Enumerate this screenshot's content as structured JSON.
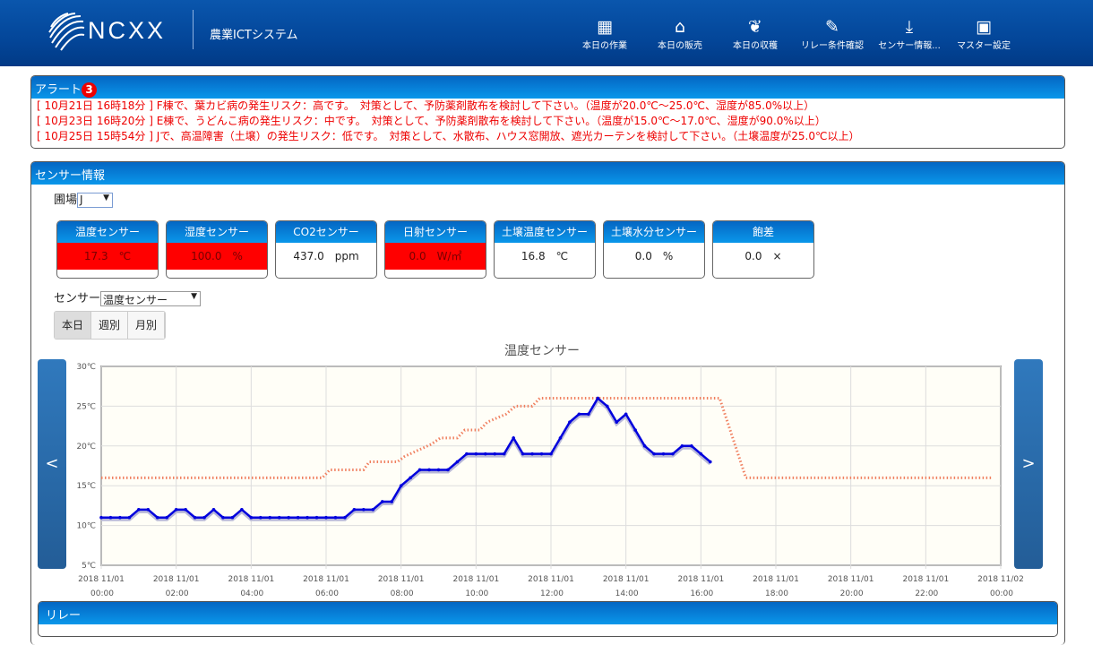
{
  "header": {
    "brand": "NCXX",
    "system": "農業ICTシステム",
    "nav": [
      {
        "label": "本日の作業",
        "icon": "calendar-icon"
      },
      {
        "label": "本日の販売",
        "icon": "store-icon"
      },
      {
        "label": "本日の収穫",
        "icon": "harvest-icon"
      },
      {
        "label": "リレー条件確認",
        "icon": "clipboard-edit-icon"
      },
      {
        "label": "センサー情報...",
        "icon": "download-icon"
      },
      {
        "label": "マスター設定",
        "icon": "id-badge-icon"
      }
    ]
  },
  "alerts": {
    "title": "アラート",
    "count": "3",
    "items": [
      "[ 10月21日 16時18分 ] F棟で、葉カビ病の発生リスク：高です。　対策として、予防薬剤散布を検討して下さい。（温度が20.0℃～25.0℃、湿度が85.0%以上）",
      "[ 10月23日 16時20分 ] E棟で、うどんこ病の発生リスク：中です。　対策として、予防薬剤散布を検討して下さい。（温度が15.0℃～17.0℃、湿度が90.0%以上）",
      "[ 10月25日 15時54分 ] Jで、高温障害（土壌）の発生リスク：低です。　対策として、水散布、ハウス窓開放、遮光カーテンを検討して下さい。（土壌温度が25.0℃以上）"
    ],
    "color": "#ee0000"
  },
  "sensor": {
    "title": "センサー情報",
    "farm_label": "圃場",
    "farm_value": "J",
    "cards": [
      {
        "name": "温度センサー",
        "value": "17.3　℃",
        "alert": true
      },
      {
        "name": "湿度センサー",
        "value": "100.0　%",
        "alert": true
      },
      {
        "name": "CO2センサー",
        "value": "437.0　ppm",
        "alert": false
      },
      {
        "name": "日射センサー",
        "value": "0.0　W/㎡",
        "alert": true
      },
      {
        "name": "土壌温度センサー",
        "value": "16.8　℃",
        "alert": false
      },
      {
        "name": "土壌水分センサー",
        "value": "0.0　%",
        "alert": false
      },
      {
        "name": "飽差",
        "value": "0.0　×",
        "alert": false
      }
    ],
    "sensor_label": "センサー",
    "sensor_value": "温度センサー",
    "ranges": [
      "本日",
      "週別",
      "月別"
    ],
    "active_range": "本日",
    "prev": "<",
    "next": ">"
  },
  "chart_data": {
    "type": "line",
    "title": "温度センサー",
    "ylim": [
      5,
      30
    ],
    "yticks": [
      "5℃",
      "10℃",
      "15℃",
      "20℃",
      "25℃",
      "30℃"
    ],
    "xlim_hours": [
      0,
      24
    ],
    "xticks": [
      [
        "2018 11/01",
        "00:00"
      ],
      [
        "2018 11/01",
        "02:00"
      ],
      [
        "2018 11/01",
        "04:00"
      ],
      [
        "2018 11/01",
        "06:00"
      ],
      [
        "2018 11/01",
        "08:00"
      ],
      [
        "2018 11/01",
        "10:00"
      ],
      [
        "2018 11/01",
        "12:00"
      ],
      [
        "2018 11/01",
        "14:00"
      ],
      [
        "2018 11/01",
        "16:00"
      ],
      [
        "2018 11/01",
        "18:00"
      ],
      [
        "2018 11/01",
        "20:00"
      ],
      [
        "2018 11/01",
        "22:00"
      ],
      [
        "2018 11/02",
        "00:00"
      ]
    ],
    "grid": true,
    "series": [
      {
        "color": "#0000dd",
        "style": "solid",
        "interval_minutes": 15,
        "values": [
          11,
          11,
          11,
          11,
          12,
          12,
          11,
          11,
          12,
          12,
          11,
          11,
          12,
          11,
          11,
          12,
          11,
          11,
          11,
          11,
          11,
          11,
          11,
          11,
          11,
          11,
          11,
          12,
          12,
          12,
          13,
          13,
          15,
          16,
          17,
          17,
          17,
          17,
          18,
          19,
          19,
          19,
          19,
          19,
          21,
          19,
          19,
          19,
          19,
          21,
          23,
          24,
          24,
          26,
          25,
          23,
          24,
          22,
          20,
          19,
          19,
          19,
          20,
          20,
          19,
          18
        ]
      },
      {
        "color": "#f08060",
        "style": "dotted",
        "points": [
          [
            0,
            16
          ],
          [
            5.9,
            16
          ],
          [
            6.1,
            17
          ],
          [
            7.0,
            17
          ],
          [
            7.15,
            18
          ],
          [
            7.9,
            18
          ],
          [
            8.1,
            18.7
          ],
          [
            8.8,
            20.2
          ],
          [
            9.05,
            21
          ],
          [
            9.5,
            21
          ],
          [
            9.7,
            22
          ],
          [
            10.1,
            22
          ],
          [
            10.3,
            23
          ],
          [
            10.8,
            24
          ],
          [
            11.05,
            25
          ],
          [
            11.5,
            25
          ],
          [
            11.7,
            26
          ],
          [
            16.5,
            26
          ],
          [
            17.2,
            16
          ],
          [
            23.8,
            16
          ]
        ]
      }
    ]
  },
  "relay": {
    "title": "リレー"
  }
}
